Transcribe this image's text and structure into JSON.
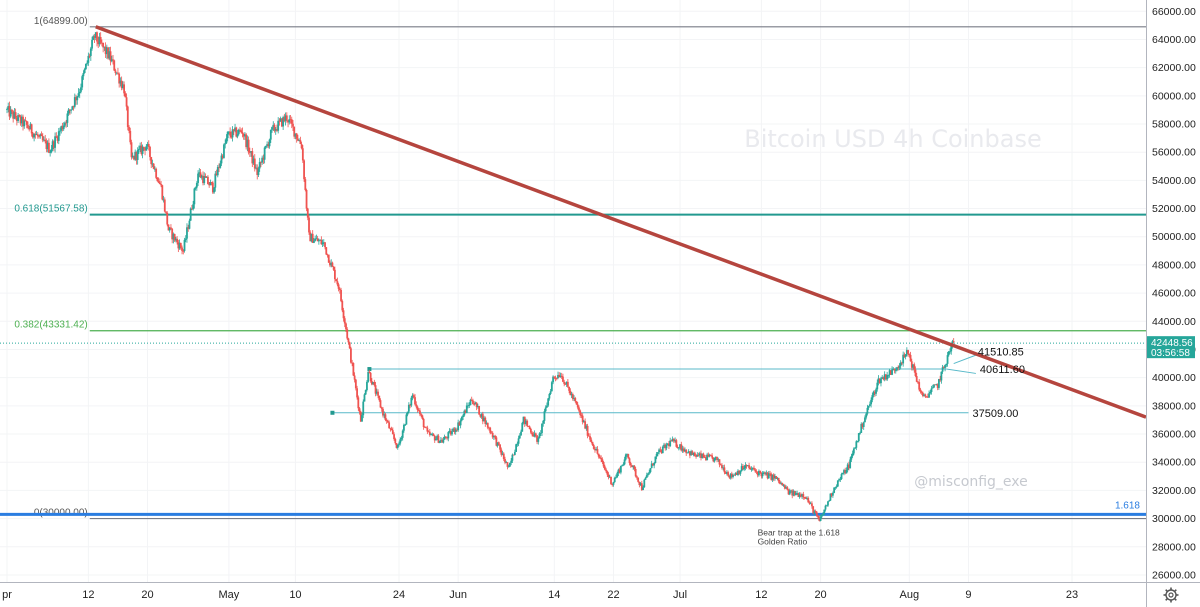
{
  "chart_data": {
    "type": "candlestick",
    "watermark": "Bitcoin USD 4h Coinbase",
    "credit": "@misconfig_exe",
    "y_axis": {
      "min": 25500,
      "max": 66800,
      "ticks": [
        26000,
        28000,
        30000,
        32000,
        34000,
        36000,
        38000,
        40000,
        42000,
        44000,
        46000,
        48000,
        50000,
        52000,
        54000,
        56000,
        58000,
        60000,
        62000,
        64000,
        66000
      ],
      "tick_labels": [
        "26000.00",
        "28000.00",
        "30000.00",
        "32000.00",
        "34000.00",
        "36000.00",
        "38000.00",
        "40000.00",
        "42000.00",
        "44000.00",
        "46000.00",
        "48000.00",
        "50000.00",
        "52000.00",
        "54000.00",
        "56000.00",
        "58000.00",
        "60000.00",
        "62000.00",
        "64000.00",
        "66000.00"
      ]
    },
    "x_axis": {
      "start": "2021-04-01",
      "end": "2021-09-02",
      "ticks": [
        {
          "date": "2021-04-01",
          "label": "pr"
        },
        {
          "date": "2021-04-12",
          "label": "12"
        },
        {
          "date": "2021-04-20",
          "label": "20"
        },
        {
          "date": "2021-05-01",
          "label": "May"
        },
        {
          "date": "2021-05-10",
          "label": "10"
        },
        {
          "date": "2021-05-24",
          "label": "24"
        },
        {
          "date": "2021-06-01",
          "label": "Jun"
        },
        {
          "date": "2021-06-14",
          "label": "14"
        },
        {
          "date": "2021-06-22",
          "label": "22"
        },
        {
          "date": "2021-07-01",
          "label": "Jul"
        },
        {
          "date": "2021-07-12",
          "label": "12"
        },
        {
          "date": "2021-07-20",
          "label": "20"
        },
        {
          "date": "2021-08-01",
          "label": "Aug"
        },
        {
          "date": "2021-08-09",
          "label": "9"
        },
        {
          "date": "2021-08-23",
          "label": "23"
        }
      ]
    },
    "fib_levels": [
      {
        "label": "1(64899.00)",
        "value": 64899,
        "color": "#787b86"
      },
      {
        "label": "0.618(51567.58)",
        "value": 51567.58,
        "color": "#22998f"
      },
      {
        "label": "0.382(43331.42)",
        "value": 43331.42,
        "color": "#4caf50"
      },
      {
        "label": "0(30000.00)",
        "value": 30000,
        "color": "#787b86"
      }
    ],
    "blue_level": {
      "label": "1.618",
      "value": 30300,
      "color": "#2a7de1"
    },
    "trendline": {
      "from": {
        "date": "2021-04-13",
        "value": 64899
      },
      "to": {
        "date": "2021-09-02",
        "value": 37200
      },
      "color": "#b5453e"
    },
    "levels": [
      {
        "label": "41510.85",
        "value": 41510.85
      },
      {
        "label": "40611.60",
        "value": 40611.6
      },
      {
        "label": "37509.00",
        "value": 37509
      }
    ],
    "current_price": {
      "value": 42448.56,
      "label": "42448.56",
      "countdown": "03:56:58",
      "color": "#26a69a"
    },
    "annotation": {
      "line1": "Bear trap at the 1.618",
      "line2": "Golden Ratio",
      "date": "2021-07-20",
      "value": 29300
    },
    "colors": {
      "up": "#26a69a",
      "down": "#ef5350"
    },
    "price_path": [
      {
        "date": "2021-04-01",
        "value": 59000
      },
      {
        "date": "2021-04-04",
        "value": 57800
      },
      {
        "date": "2021-04-07",
        "value": 56200
      },
      {
        "date": "2021-04-09",
        "value": 58200
      },
      {
        "date": "2021-04-11",
        "value": 60500
      },
      {
        "date": "2021-04-13",
        "value": 64200
      },
      {
        "date": "2021-04-15",
        "value": 62800
      },
      {
        "date": "2021-04-17",
        "value": 60500
      },
      {
        "date": "2021-04-18",
        "value": 55500
      },
      {
        "date": "2021-04-20",
        "value": 56500
      },
      {
        "date": "2021-04-22",
        "value": 53500
      },
      {
        "date": "2021-04-23",
        "value": 50500
      },
      {
        "date": "2021-04-25",
        "value": 49000
      },
      {
        "date": "2021-04-27",
        "value": 54500
      },
      {
        "date": "2021-04-29",
        "value": 53500
      },
      {
        "date": "2021-05-01",
        "value": 57200
      },
      {
        "date": "2021-05-03",
        "value": 57500
      },
      {
        "date": "2021-05-05",
        "value": 54500
      },
      {
        "date": "2021-05-07",
        "value": 57500
      },
      {
        "date": "2021-05-09",
        "value": 58500
      },
      {
        "date": "2021-05-11",
        "value": 56500
      },
      {
        "date": "2021-05-12",
        "value": 50000
      },
      {
        "date": "2021-05-14",
        "value": 49500
      },
      {
        "date": "2021-05-16",
        "value": 46500
      },
      {
        "date": "2021-05-17",
        "value": 43500
      },
      {
        "date": "2021-05-19",
        "value": 37000
      },
      {
        "date": "2021-05-20",
        "value": 40500
      },
      {
        "date": "2021-05-22",
        "value": 37500
      },
      {
        "date": "2021-05-24",
        "value": 35000
      },
      {
        "date": "2021-05-26",
        "value": 38800
      },
      {
        "date": "2021-05-28",
        "value": 36000
      },
      {
        "date": "2021-05-30",
        "value": 35500
      },
      {
        "date": "2021-06-01",
        "value": 36500
      },
      {
        "date": "2021-06-03",
        "value": 38500
      },
      {
        "date": "2021-06-06",
        "value": 35800
      },
      {
        "date": "2021-06-08",
        "value": 33500
      },
      {
        "date": "2021-06-10",
        "value": 37000
      },
      {
        "date": "2021-06-12",
        "value": 35500
      },
      {
        "date": "2021-06-14",
        "value": 40000
      },
      {
        "date": "2021-06-15",
        "value": 40300
      },
      {
        "date": "2021-06-17",
        "value": 38200
      },
      {
        "date": "2021-06-19",
        "value": 35700
      },
      {
        "date": "2021-06-21",
        "value": 33500
      },
      {
        "date": "2021-06-22",
        "value": 32500
      },
      {
        "date": "2021-06-24",
        "value": 34500
      },
      {
        "date": "2021-06-26",
        "value": 32200
      },
      {
        "date": "2021-06-28",
        "value": 34500
      },
      {
        "date": "2021-06-30",
        "value": 35500
      },
      {
        "date": "2021-07-03",
        "value": 34500
      },
      {
        "date": "2021-07-06",
        "value": 34200
      },
      {
        "date": "2021-07-08",
        "value": 33000
      },
      {
        "date": "2021-07-10",
        "value": 33700
      },
      {
        "date": "2021-07-12",
        "value": 33200
      },
      {
        "date": "2021-07-14",
        "value": 32900
      },
      {
        "date": "2021-07-16",
        "value": 31800
      },
      {
        "date": "2021-07-18",
        "value": 31700
      },
      {
        "date": "2021-07-20",
        "value": 29800
      },
      {
        "date": "2021-07-22",
        "value": 32200
      },
      {
        "date": "2021-07-24",
        "value": 33800
      },
      {
        "date": "2021-07-26",
        "value": 37000
      },
      {
        "date": "2021-07-28",
        "value": 39800
      },
      {
        "date": "2021-07-30",
        "value": 40500
      },
      {
        "date": "2021-08-01",
        "value": 41800
      },
      {
        "date": "2021-08-03",
        "value": 38500
      },
      {
        "date": "2021-08-05",
        "value": 39500
      },
      {
        "date": "2021-08-07",
        "value": 42448
      }
    ]
  }
}
